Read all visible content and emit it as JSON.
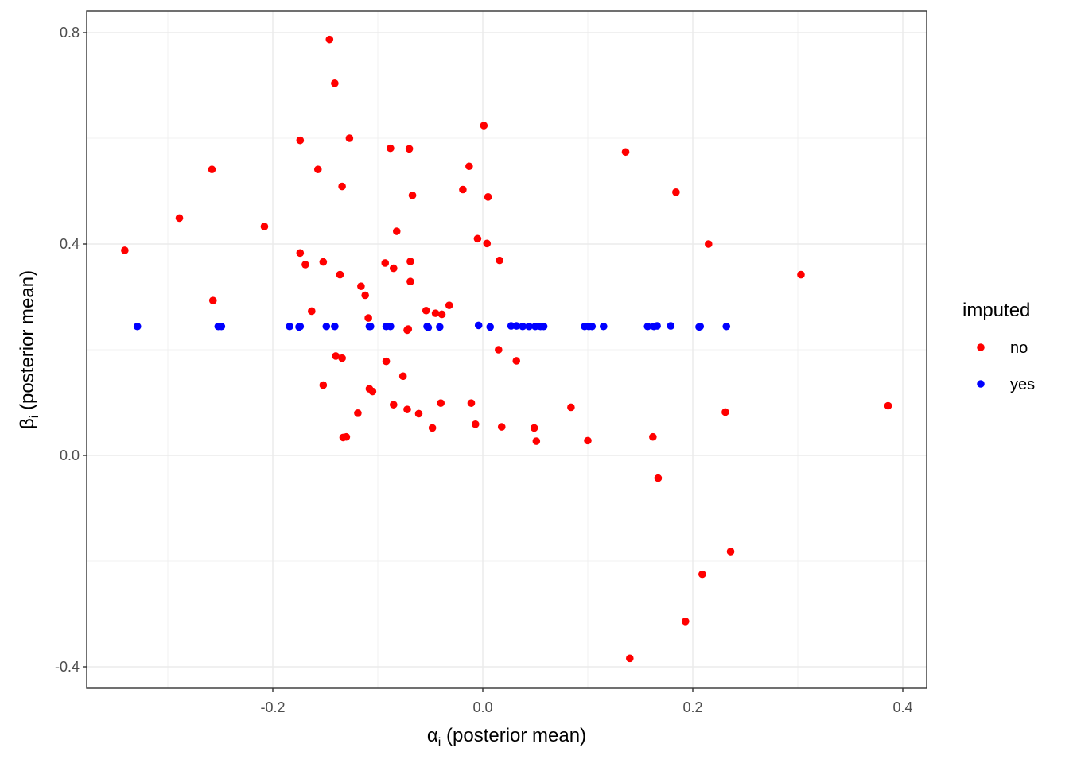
{
  "chart_data": {
    "type": "scatter",
    "title": "",
    "xlabel": "αi (posterior mean)",
    "xlabel_parts": {
      "symbol": "α",
      "sub": "i",
      "rest": " (posterior mean)"
    },
    "ylabel": "βi (posterior mean)",
    "ylabel_parts": {
      "symbol": "β",
      "sub": "i",
      "rest": " (posterior mean)"
    },
    "xlim": [
      -0.375,
      0.42
    ],
    "ylim": [
      -0.44,
      0.84
    ],
    "x_ticks": [
      -0.2,
      0.0,
      0.2,
      0.4
    ],
    "x_tick_labels": [
      "-0.2",
      "0.0",
      "0.2",
      "0.4"
    ],
    "y_ticks": [
      -0.4,
      0.0,
      0.4,
      0.8
    ],
    "y_tick_labels": [
      "-0.4",
      "0.0",
      "0.4",
      "0.8"
    ],
    "grid": true,
    "legend": {
      "title": "imputed",
      "position": "right"
    },
    "series": [
      {
        "name": "no",
        "color": "#FF0000",
        "points": [
          [
            -0.341,
            0.388
          ],
          [
            -0.289,
            0.449
          ],
          [
            -0.258,
            0.541
          ],
          [
            -0.257,
            0.293
          ],
          [
            -0.208,
            0.433
          ],
          [
            -0.174,
            0.596
          ],
          [
            -0.174,
            0.383
          ],
          [
            -0.169,
            0.361
          ],
          [
            -0.163,
            0.273
          ],
          [
            -0.157,
            0.541
          ],
          [
            -0.152,
            0.366
          ],
          [
            -0.152,
            0.133
          ],
          [
            -0.146,
            0.787
          ],
          [
            -0.141,
            0.704
          ],
          [
            -0.14,
            0.188
          ],
          [
            -0.136,
            0.342
          ],
          [
            -0.134,
            0.509
          ],
          [
            -0.134,
            0.184
          ],
          [
            -0.133,
            0.034
          ],
          [
            -0.13,
            0.035
          ],
          [
            -0.127,
            0.6
          ],
          [
            -0.119,
            0.08
          ],
          [
            -0.116,
            0.32
          ],
          [
            -0.112,
            0.303
          ],
          [
            -0.109,
            0.26
          ],
          [
            -0.108,
            0.126
          ],
          [
            -0.105,
            0.121
          ],
          [
            -0.093,
            0.364
          ],
          [
            -0.092,
            0.178
          ],
          [
            -0.088,
            0.581
          ],
          [
            -0.085,
            0.354
          ],
          [
            -0.085,
            0.096
          ],
          [
            -0.082,
            0.424
          ],
          [
            -0.076,
            0.15
          ],
          [
            -0.072,
            0.087
          ],
          [
            -0.072,
            0.237
          ],
          [
            -0.071,
            0.239
          ],
          [
            -0.07,
            0.58
          ],
          [
            -0.069,
            0.367
          ],
          [
            -0.069,
            0.329
          ],
          [
            -0.067,
            0.492
          ],
          [
            -0.061,
            0.079
          ],
          [
            -0.054,
            0.274
          ],
          [
            -0.048,
            0.052
          ],
          [
            -0.045,
            0.269
          ],
          [
            -0.04,
            0.099
          ],
          [
            -0.039,
            0.267
          ],
          [
            -0.032,
            0.284
          ],
          [
            -0.019,
            0.503
          ],
          [
            -0.013,
            0.547
          ],
          [
            -0.011,
            0.099
          ],
          [
            -0.007,
            0.059
          ],
          [
            -0.005,
            0.41
          ],
          [
            0.001,
            0.624
          ],
          [
            0.004,
            0.401
          ],
          [
            0.005,
            0.489
          ],
          [
            0.015,
            0.2
          ],
          [
            0.016,
            0.369
          ],
          [
            0.018,
            0.054
          ],
          [
            0.032,
            0.179
          ],
          [
            0.049,
            0.052
          ],
          [
            0.051,
            0.027
          ],
          [
            0.084,
            0.091
          ],
          [
            0.1,
            0.028
          ],
          [
            0.136,
            0.574
          ],
          [
            0.14,
            -0.384
          ],
          [
            0.162,
            0.035
          ],
          [
            0.167,
            -0.043
          ],
          [
            0.184,
            0.498
          ],
          [
            0.193,
            -0.314
          ],
          [
            0.209,
            -0.225
          ],
          [
            0.215,
            0.4
          ],
          [
            0.231,
            0.082
          ],
          [
            0.236,
            -0.182
          ],
          [
            0.303,
            0.342
          ],
          [
            0.386,
            0.094
          ]
        ]
      },
      {
        "name": "yes",
        "color": "#0000FF",
        "points": [
          [
            -0.329,
            0.244
          ],
          [
            -0.252,
            0.244
          ],
          [
            -0.249,
            0.244
          ],
          [
            -0.184,
            0.244
          ],
          [
            -0.175,
            0.243
          ],
          [
            -0.174,
            0.244
          ],
          [
            -0.149,
            0.244
          ],
          [
            -0.141,
            0.244
          ],
          [
            -0.108,
            0.244
          ],
          [
            -0.107,
            0.244
          ],
          [
            -0.092,
            0.244
          ],
          [
            -0.088,
            0.244
          ],
          [
            -0.053,
            0.244
          ],
          [
            -0.052,
            0.242
          ],
          [
            -0.041,
            0.243
          ],
          [
            -0.004,
            0.246
          ],
          [
            0.007,
            0.243
          ],
          [
            0.027,
            0.245
          ],
          [
            0.032,
            0.245
          ],
          [
            0.038,
            0.244
          ],
          [
            0.044,
            0.244
          ],
          [
            0.05,
            0.244
          ],
          [
            0.055,
            0.244
          ],
          [
            0.058,
            0.244
          ],
          [
            0.097,
            0.244
          ],
          [
            0.101,
            0.244
          ],
          [
            0.104,
            0.244
          ],
          [
            0.115,
            0.244
          ],
          [
            0.157,
            0.244
          ],
          [
            0.163,
            0.244
          ],
          [
            0.166,
            0.245
          ],
          [
            0.179,
            0.245
          ],
          [
            0.206,
            0.243
          ],
          [
            0.207,
            0.244
          ],
          [
            0.232,
            0.244
          ]
        ]
      }
    ]
  }
}
